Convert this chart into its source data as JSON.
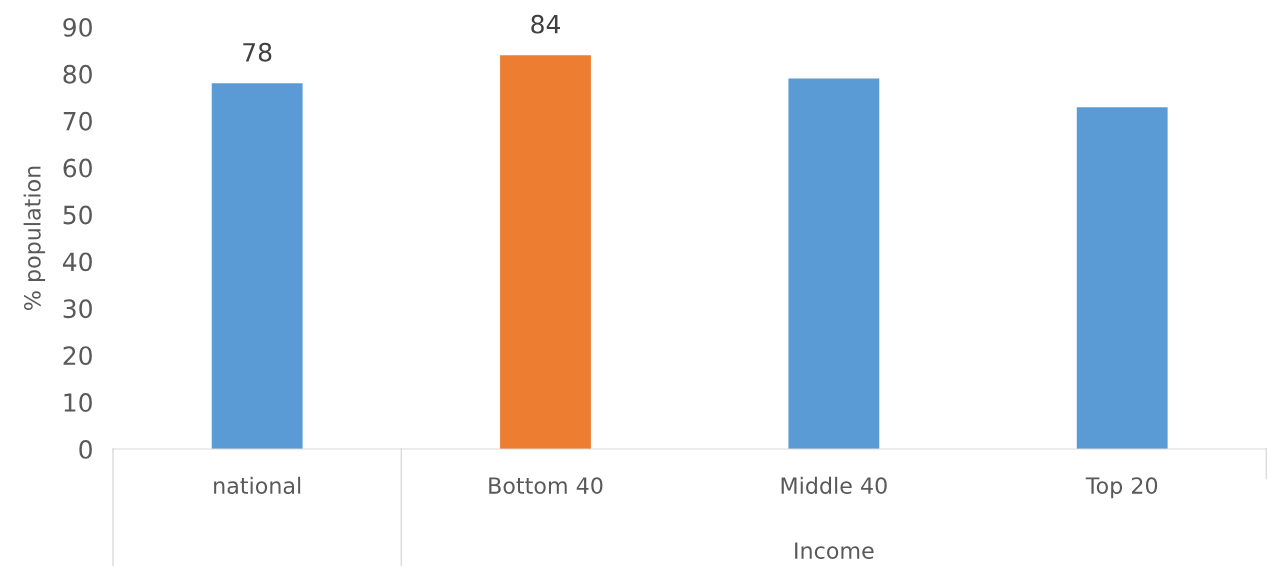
{
  "chart_data": {
    "type": "bar",
    "categories": [
      "national",
      "Bottom 40",
      "Middle 40",
      "Top 20"
    ],
    "values": [
      78,
      84,
      79,
      72.9
    ],
    "colors": [
      "#5b9bd5",
      "#ed7d31",
      "#5b9bd5",
      "#5b9bd5"
    ],
    "value_labels": [
      "78",
      "84",
      null,
      null
    ],
    "xlabel": "Income",
    "ylabel": "% population",
    "ylim": [
      0,
      90
    ],
    "yticks": [
      0,
      10,
      20,
      30,
      40,
      50,
      60,
      70,
      80,
      90
    ],
    "grid": false,
    "legend": false
  }
}
